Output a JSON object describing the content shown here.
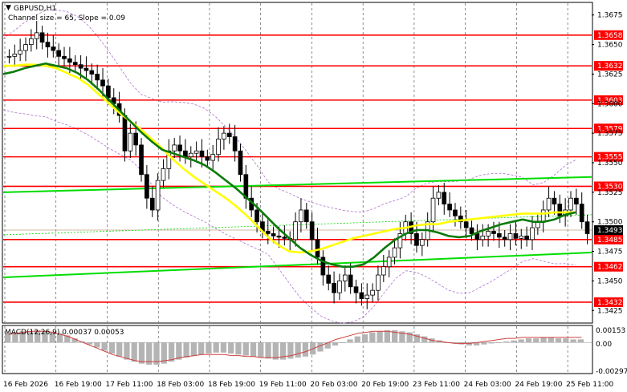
{
  "header": {
    "symbol": "GBPUSD,H1",
    "indicator": "Channel size = 65, Slope = 0.09"
  },
  "macd": {
    "label": "MACD(12,26,9) 0.00037 0.00053",
    "ticks": [
      "0.00153",
      "0.00",
      "-0.00297"
    ]
  },
  "colors": {
    "level_line": "#ff0000",
    "channel": "#00dd00",
    "ma_fast": "#0a7a0a",
    "ma_slow": "#ffff00",
    "candles": "#000000",
    "bands": "#b070d0",
    "macd_hist": "#b4b4b4",
    "macd_signal": "#d04040",
    "price_tag": "#000000"
  },
  "price_axis": {
    "ticks": [
      "1.3675",
      "1.3650",
      "1.3625",
      "1.3600",
      "1.3575",
      "1.3550",
      "1.3525",
      "1.3500",
      "1.3475",
      "1.3450",
      "1.3425"
    ]
  },
  "levels": [
    {
      "label": "1.3658",
      "value": 1.3658
    },
    {
      "label": "1.3632",
      "value": 1.3632
    },
    {
      "label": "1.3603",
      "value": 1.3603
    },
    {
      "label": "1.3579",
      "value": 1.3579
    },
    {
      "label": "1.3555",
      "value": 1.3555
    },
    {
      "label": "1.3530",
      "value": 1.353
    },
    {
      "label": "1.3485",
      "value": 1.3485
    },
    {
      "label": "1.3462",
      "value": 1.3462
    },
    {
      "label": "1.3432",
      "value": 1.3432
    }
  ],
  "current_price": {
    "label": "1.3493",
    "value": 1.3493
  },
  "time_axis": {
    "labels": [
      "16 Feb 2026",
      "16 Feb 19:00",
      "17 Feb 11:00",
      "18 Feb 03:00",
      "18 Feb 19:00",
      "19 Feb 11:00",
      "20 Feb 03:00",
      "20 Feb 19:00",
      "23 Feb 11:00",
      "24 Feb 03:00",
      "24 Feb 19:00",
      "25 Feb 11:00"
    ]
  },
  "chart_data": {
    "type": "candlestick",
    "ylim": [
      1.3415,
      1.3685
    ],
    "closes": [
      1.364,
      1.3642,
      1.3645,
      1.365,
      1.3655,
      1.366,
      1.3652,
      1.3648,
      1.3645,
      1.364,
      1.3638,
      1.3635,
      1.3633,
      1.363,
      1.3628,
      1.3625,
      1.362,
      1.3615,
      1.3605,
      1.36,
      1.359,
      1.356,
      1.3575,
      1.3565,
      1.354,
      1.352,
      1.351,
      1.3535,
      1.3545,
      1.356,
      1.3565,
      1.356,
      1.3555,
      1.3558,
      1.356,
      1.3555,
      1.3552,
      1.3557,
      1.357,
      1.3575,
      1.3572,
      1.356,
      1.354,
      1.352,
      1.351,
      1.35,
      1.3492,
      1.349,
      1.3488,
      1.3487,
      1.3486,
      1.3485,
      1.35,
      1.351,
      1.35,
      1.3485,
      1.347,
      1.3455,
      1.3448,
      1.344,
      1.345,
      1.3455,
      1.3445,
      1.344,
      1.3435,
      1.3438,
      1.3442,
      1.3455,
      1.3462,
      1.347,
      1.3478,
      1.349,
      1.35,
      1.349,
      1.348,
      1.3485,
      1.35,
      1.352,
      1.3525,
      1.3515,
      1.351,
      1.3505,
      1.35,
      1.3495,
      1.349,
      1.3485,
      1.3488,
      1.3492,
      1.349,
      1.3487,
      1.3485,
      1.349,
      1.3486,
      1.3488,
      1.3485,
      1.3495,
      1.35,
      1.351,
      1.352,
      1.3515,
      1.3505,
      1.351,
      1.352,
      1.3515,
      1.35,
      1.349
    ],
    "ma_fast": [
      1.3625,
      1.3627,
      1.363,
      1.3632,
      1.3634,
      1.3632,
      1.363,
      1.3626,
      1.362,
      1.3612,
      1.3603,
      1.3594,
      1.3585,
      1.3576,
      1.3568,
      1.3561,
      1.3558,
      1.3555,
      1.3552,
      1.3548,
      1.3542,
      1.3535,
      1.3528,
      1.352,
      1.3512,
      1.3503,
      1.3494,
      1.3486,
      1.3478,
      1.3472,
      1.3467,
      1.3464,
      1.3462,
      1.3462,
      1.3464,
      1.347,
      1.3478,
      1.3485,
      1.349,
      1.3493,
      1.3493,
      1.3491,
      1.3488,
      1.3487,
      1.3488,
      1.3492,
      1.3495,
      1.3498,
      1.35,
      1.3502,
      1.35,
      1.35,
      1.3502,
      1.3506,
      1.3508
    ],
    "ma_slow": [
      1.3632,
      1.3632,
      1.3633,
      1.3633,
      1.3632,
      1.363,
      1.3626,
      1.3622,
      1.3616,
      1.3608,
      1.36,
      1.3592,
      1.3585,
      1.3578,
      1.357,
      1.3562,
      1.3553,
      1.3545,
      1.3538,
      1.3532,
      1.3526,
      1.352,
      1.3513,
      1.3505,
      1.3496,
      1.3487,
      1.348,
      1.3475,
      1.3474,
      1.3475,
      1.3477,
      1.348,
      1.3483,
      1.3486,
      1.3488,
      1.349,
      1.3492,
      1.3494,
      1.3495,
      1.3497,
      1.3498,
      1.3498,
      1.35,
      1.3501,
      1.3502,
      1.3503,
      1.3504,
      1.3505,
      1.3506,
      1.3507,
      1.3507,
      1.3507,
      1.3508,
      1.3508,
      1.3508
    ],
    "channel_upper": [
      1.3525,
      1.3538
    ],
    "channel_lower": [
      1.3453,
      1.3474
    ],
    "macd_hist": [
      0.0009,
      0.001,
      0.0011,
      0.0011,
      0.0012,
      0.0011,
      0.001,
      0.0009,
      0.0007,
      0.0004,
      0.0001,
      -0.0002,
      -0.0005,
      -0.0008,
      -0.0011,
      -0.0014,
      -0.0017,
      -0.0019,
      -0.0021,
      -0.0022,
      -0.0022,
      -0.0021,
      -0.0019,
      -0.0017,
      -0.0015,
      -0.0013,
      -0.0012,
      -0.0011,
      -0.001,
      -0.001,
      -0.0011,
      -0.0012,
      -0.0013,
      -0.0014,
      -0.0015,
      -0.0016,
      -0.0017,
      -0.0017,
      -0.0016,
      -0.0015,
      -0.0014,
      -0.0012,
      -0.0009,
      -0.0006,
      -0.0003,
      0.0,
      0.0003,
      0.0006,
      0.0008,
      0.001,
      0.0011,
      0.0012,
      0.0012,
      0.0011,
      0.001,
      0.0008,
      0.0006,
      0.0004,
      0.0002,
      0.0,
      -0.0001,
      -0.0002,
      -0.0003,
      -0.0003,
      -0.0002,
      -0.0001,
      0.0,
      0.0001,
      0.0002,
      0.0003,
      0.0004,
      0.0004,
      0.0005,
      0.0005,
      0.0004,
      0.0004,
      0.0003,
      0.0003
    ],
    "macd_signal": [
      0.0008,
      0.0009,
      0.001,
      0.0011,
      0.0011,
      0.0011,
      0.001,
      0.0008,
      0.0006,
      0.0003,
      0.0,
      -0.0003,
      -0.0006,
      -0.0009,
      -0.0012,
      -0.0014,
      -0.0016,
      -0.0018,
      -0.0019,
      -0.0019,
      -0.0019,
      -0.0018,
      -0.0017,
      -0.0015,
      -0.0014,
      -0.0013,
      -0.0012,
      -0.0012,
      -0.0012,
      -0.0012,
      -0.0013,
      -0.0013,
      -0.0014,
      -0.0014,
      -0.0015,
      -0.0015,
      -0.0015,
      -0.0014,
      -0.0013,
      -0.0011,
      -0.0009,
      -0.0006,
      -0.0003,
      0.0,
      0.0003,
      0.0005,
      0.0007,
      0.0009,
      0.001,
      0.0011,
      0.0011,
      0.0011,
      0.001,
      0.0009,
      0.0008,
      0.0006,
      0.0004,
      0.0002,
      0.0001,
      0.0,
      -0.0001,
      -0.0001,
      -0.0001,
      0.0,
      0.0001,
      0.0002,
      0.0003,
      0.0004,
      0.0004,
      0.0005,
      0.0005,
      0.0005,
      0.0005,
      0.0005,
      0.0005,
      0.0005,
      0.0005,
      0.0005
    ],
    "macd_ylim": [
      -0.003,
      0.0016
    ]
  }
}
